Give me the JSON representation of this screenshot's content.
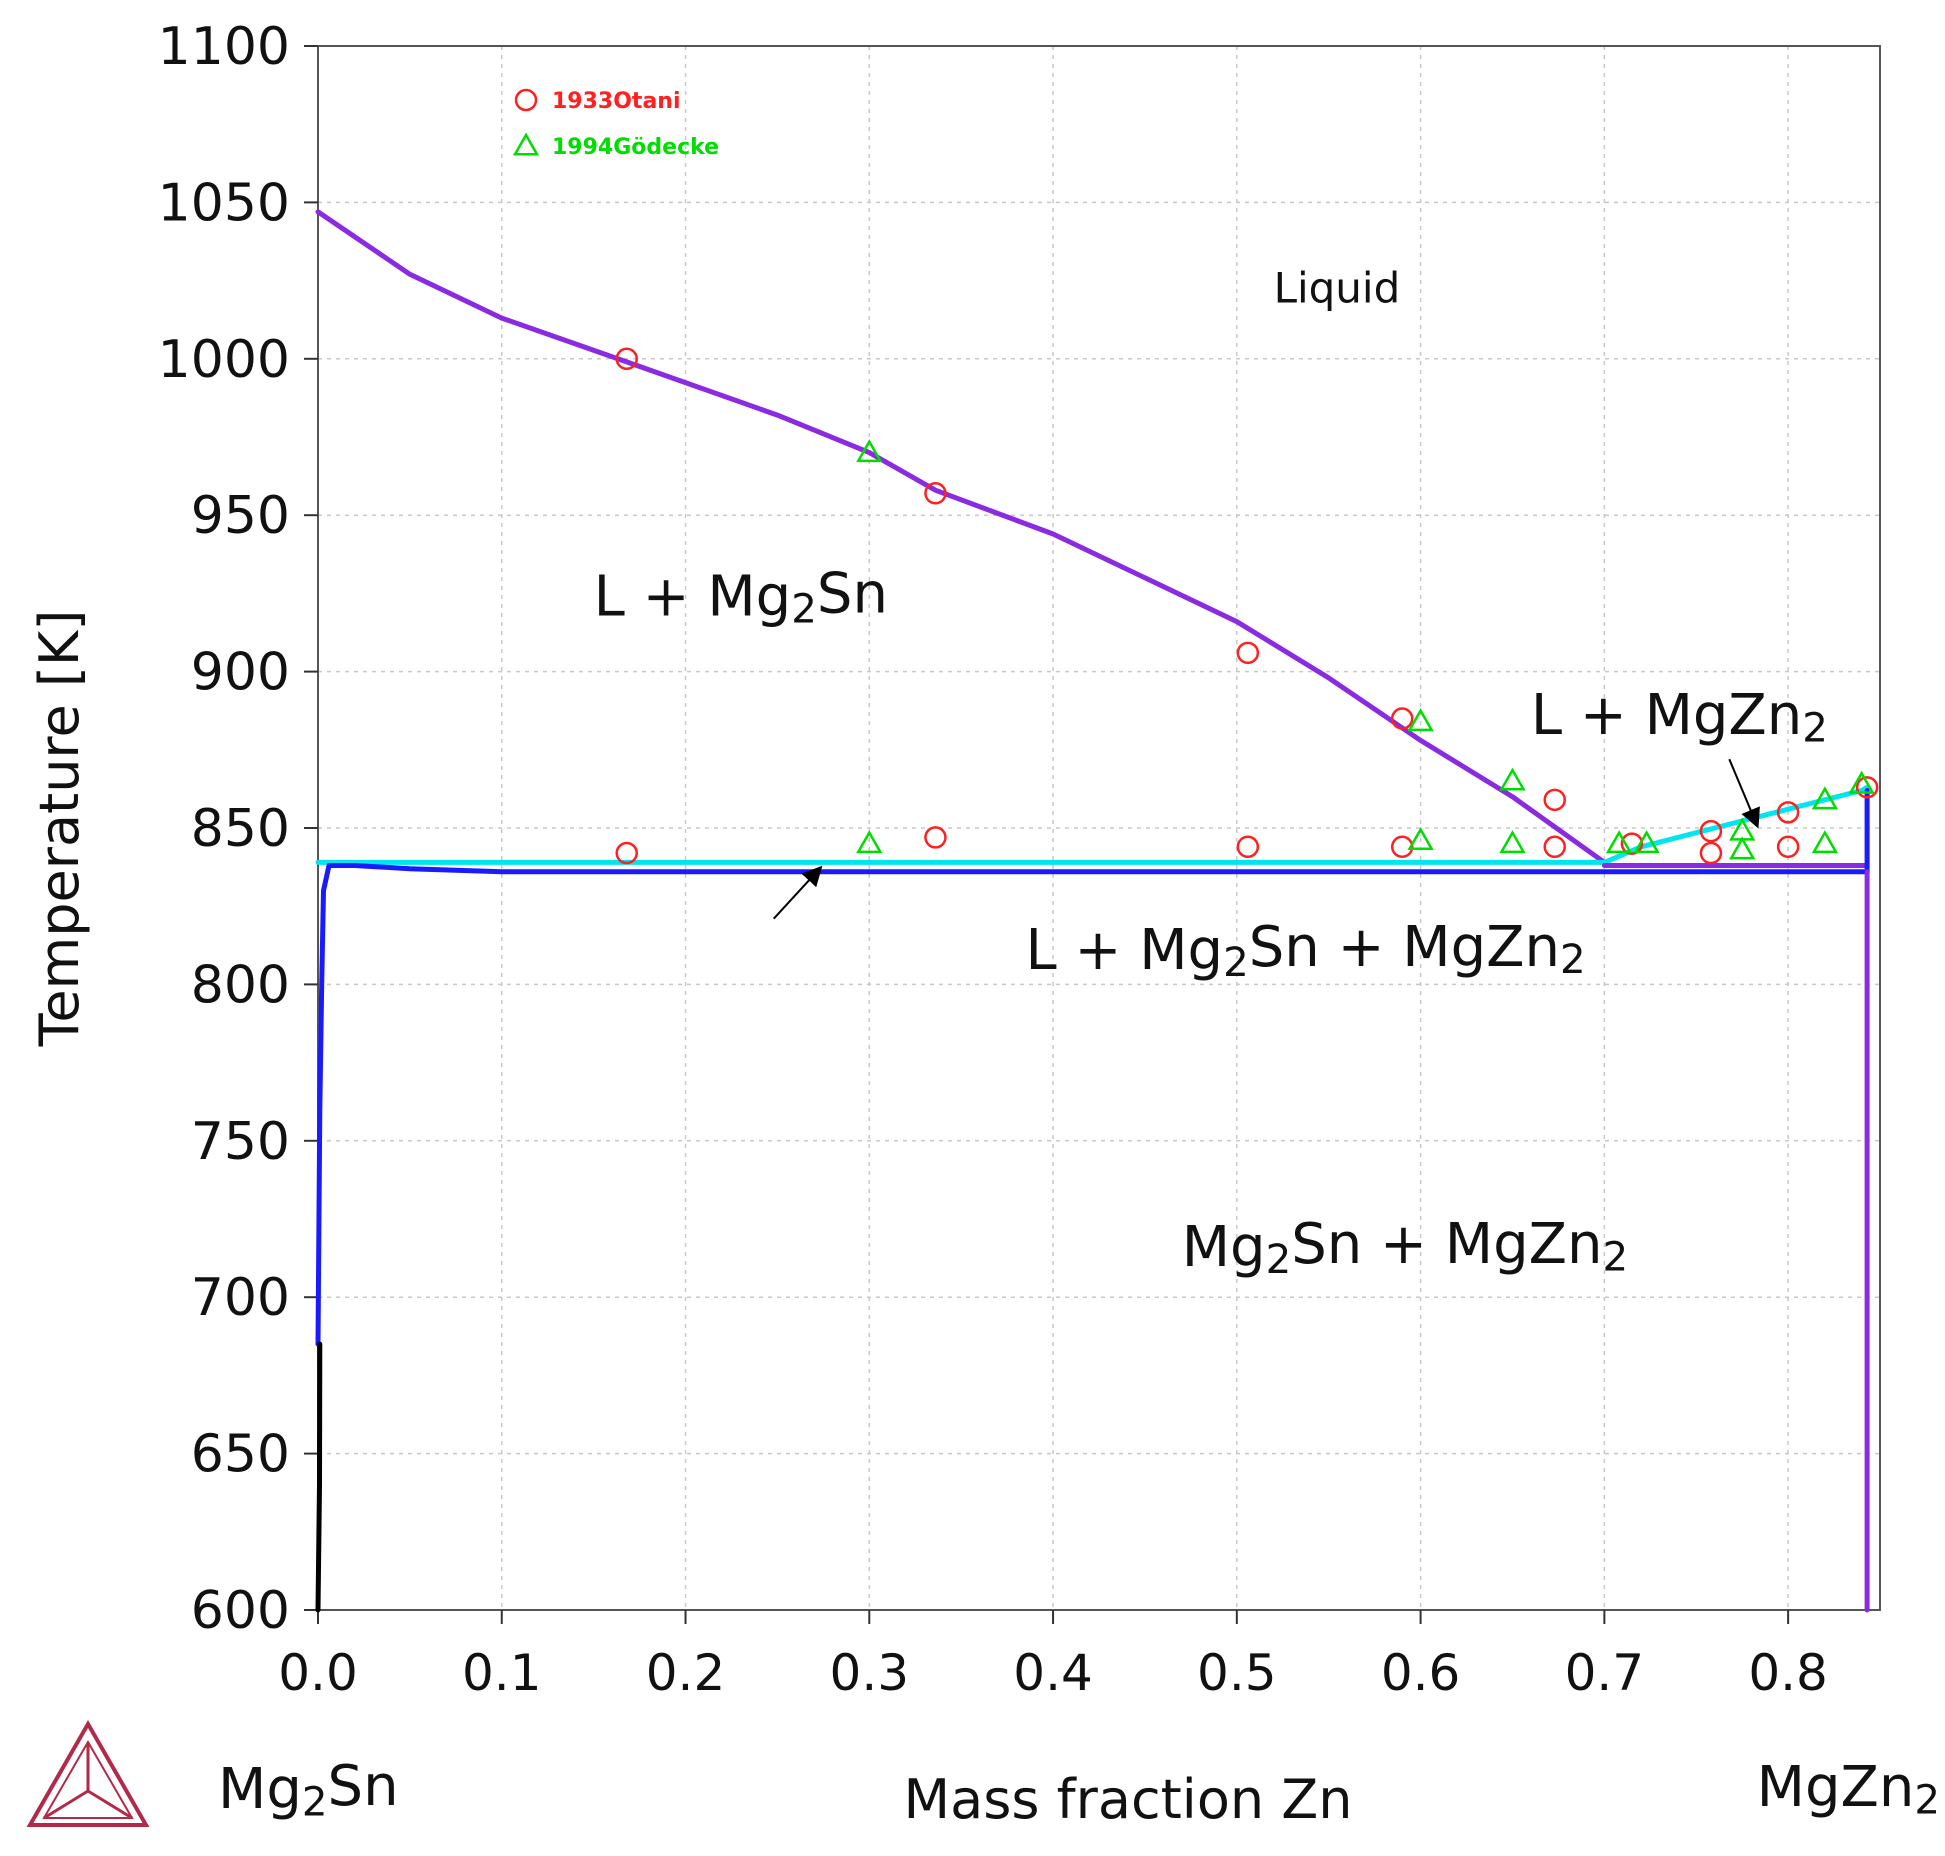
{
  "chart_data": {
    "type": "line",
    "title": "",
    "xlabel": "Mass fraction Zn",
    "ylabel": "Temperature [K]",
    "xlim": [
      0,
      0.85
    ],
    "ylim": [
      600,
      1100
    ],
    "x_ticks": [
      0.0,
      0.1,
      0.2,
      0.3,
      0.4,
      0.5,
      0.6,
      0.7,
      0.8
    ],
    "x_tick_labels": [
      "0.0",
      "0.1",
      "0.2",
      "0.3",
      "0.4",
      "0.5",
      "0.6",
      "0.7",
      "0.8"
    ],
    "y_ticks": [
      600,
      650,
      700,
      750,
      800,
      850,
      900,
      950,
      1000,
      1050,
      1100
    ],
    "y_tick_labels": [
      "600",
      "650",
      "700",
      "750",
      "800",
      "850",
      "900",
      "950",
      "1000",
      "1050",
      "1100"
    ],
    "grid": true,
    "legend_position": "top-left",
    "endpoint_labels": {
      "left": {
        "base": "Mg",
        "sub": "2",
        "rest": "Sn"
      },
      "right": {
        "base": "MgZn",
        "sub": "2",
        "rest": ""
      }
    },
    "series": [
      {
        "color": "#8a2be2",
        "points": [
          [
            0.0,
            1047
          ],
          [
            0.05,
            1027
          ],
          [
            0.1,
            1013
          ],
          [
            0.168,
            999
          ],
          [
            0.25,
            982
          ],
          [
            0.3,
            970
          ],
          [
            0.336,
            958
          ],
          [
            0.4,
            944
          ],
          [
            0.45,
            930
          ],
          [
            0.5,
            916
          ],
          [
            0.55,
            898
          ],
          [
            0.6,
            878
          ],
          [
            0.65,
            860
          ],
          [
            0.7,
            839
          ]
        ]
      },
      {
        "color": "#00e5ee",
        "points": [
          [
            0.0,
            839
          ],
          [
            0.1,
            839
          ],
          [
            0.2,
            839
          ],
          [
            0.3,
            839
          ],
          [
            0.4,
            839
          ],
          [
            0.5,
            839
          ],
          [
            0.6,
            839
          ],
          [
            0.7,
            839
          ]
        ]
      },
      {
        "color": "#00e5ee",
        "points": [
          [
            0.7,
            839
          ],
          [
            0.72,
            844
          ],
          [
            0.74,
            847
          ],
          [
            0.76,
            850
          ],
          [
            0.78,
            853
          ],
          [
            0.8,
            856
          ],
          [
            0.82,
            859
          ],
          [
            0.84,
            862
          ],
          [
            0.843,
            863
          ]
        ]
      },
      {
        "color": "#1a1aff",
        "points": [
          [
            0.0,
            685
          ],
          [
            0.001,
            760
          ],
          [
            0.002,
            800
          ],
          [
            0.003,
            830
          ],
          [
            0.006,
            838
          ],
          [
            0.02,
            838
          ],
          [
            0.05,
            837
          ],
          [
            0.1,
            836
          ],
          [
            0.3,
            836
          ],
          [
            0.5,
            836
          ],
          [
            0.7,
            836
          ],
          [
            0.843,
            836
          ]
        ]
      },
      {
        "color": "#8a2be2",
        "points": [
          [
            0.7,
            838
          ],
          [
            0.75,
            838
          ],
          [
            0.8,
            838
          ],
          [
            0.843,
            838
          ]
        ]
      },
      {
        "color": "#000000",
        "points": [
          [
            0.0,
            600
          ],
          [
            0.0008,
            640
          ],
          [
            0.001,
            685
          ]
        ]
      },
      {
        "color": "#1a1aff",
        "points": [
          [
            0.843,
            836
          ],
          [
            0.843,
            862
          ]
        ]
      },
      {
        "color": "#8a2be2",
        "points": [
          [
            0.843,
            600
          ],
          [
            0.843,
            836
          ]
        ]
      }
    ],
    "experimental_data": [
      {
        "name": "1933Otani",
        "marker": "circle",
        "color": "#ff2020",
        "points": [
          [
            0.168,
            1000
          ],
          [
            0.336,
            957
          ],
          [
            0.506,
            906
          ],
          [
            0.59,
            885
          ],
          [
            0.673,
            859
          ],
          [
            0.168,
            842
          ],
          [
            0.336,
            847
          ],
          [
            0.506,
            844
          ],
          [
            0.59,
            844
          ],
          [
            0.673,
            844
          ],
          [
            0.715,
            845
          ],
          [
            0.758,
            849
          ],
          [
            0.758,
            842
          ],
          [
            0.8,
            855
          ],
          [
            0.8,
            844
          ],
          [
            0.843,
            863
          ]
        ]
      },
      {
        "name": "1994Gödecke",
        "marker": "triangle",
        "color": "#00dd00",
        "points": [
          [
            0.3,
            970
          ],
          [
            0.6,
            884
          ],
          [
            0.65,
            865
          ],
          [
            0.3,
            845
          ],
          [
            0.6,
            846
          ],
          [
            0.65,
            845
          ],
          [
            0.708,
            845
          ],
          [
            0.723,
            845
          ],
          [
            0.775,
            849
          ],
          [
            0.775,
            843
          ],
          [
            0.82,
            859
          ],
          [
            0.82,
            845
          ],
          [
            0.84,
            864
          ]
        ]
      }
    ],
    "annotations": [
      {
        "parts": [
          {
            "t": "Liquid"
          }
        ],
        "x": 0.52,
        "y": 1018,
        "size": "small"
      },
      {
        "parts": [
          {
            "t": "L + Mg"
          },
          {
            "t": "2",
            "sub": true
          },
          {
            "t": "Sn"
          }
        ],
        "x": 0.15,
        "y": 918,
        "size": "large"
      },
      {
        "parts": [
          {
            "t": "L +  MgZn"
          },
          {
            "t": "2",
            "sub": true
          }
        ],
        "x": 0.66,
        "y": 880,
        "size": "large"
      },
      {
        "parts": [
          {
            "t": "L + Mg"
          },
          {
            "t": "2",
            "sub": true
          },
          {
            "t": "Sn +  MgZn"
          },
          {
            "t": "2",
            "sub": true
          }
        ],
        "x": 0.385,
        "y": 805,
        "size": "large"
      },
      {
        "parts": [
          {
            "t": "Mg"
          },
          {
            "t": "2",
            "sub": true
          },
          {
            "t": "Sn +  MgZn"
          },
          {
            "t": "2",
            "sub": true
          }
        ],
        "x": 0.47,
        "y": 710,
        "size": "large"
      }
    ],
    "arrows": [
      {
        "from": [
          0.248,
          821
        ],
        "to": [
          0.273,
          837
        ]
      },
      {
        "from": [
          0.768,
          872
        ],
        "to": [
          0.783,
          851
        ]
      }
    ]
  }
}
